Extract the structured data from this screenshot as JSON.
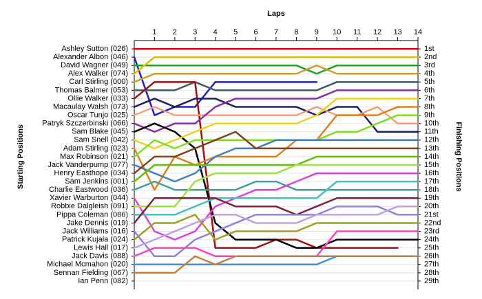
{
  "chart_data": {
    "type": "line",
    "title": "Laps",
    "y_label": "Starting Positions",
    "y2_label": "Finishing Positions",
    "x": [
      0,
      1,
      2,
      3,
      4,
      5,
      6,
      7,
      8,
      9,
      10,
      11,
      12,
      13,
      14
    ],
    "xlim": [
      0,
      14
    ],
    "xticks": [
      1,
      2,
      3,
      4,
      5,
      6,
      7,
      8,
      9,
      10,
      11,
      12,
      13,
      14
    ],
    "ylim": [
      30,
      0
    ],
    "yticks": [
      1,
      2,
      3,
      4,
      5,
      6,
      7,
      8,
      9,
      10,
      11,
      12,
      13,
      14,
      15,
      16,
      17,
      18,
      19,
      20,
      21,
      22,
      23,
      24,
      25,
      26,
      27,
      28,
      29
    ],
    "finishing_positions": [
      "1st",
      "2nd",
      "3rd",
      "4th",
      "5th",
      "6th",
      "7th",
      "8th",
      "9th",
      "10th",
      "11th",
      "12th",
      "13th",
      "14th",
      "15th",
      "16th",
      "17th",
      "18th",
      "19th",
      "20th",
      "21st",
      "22nd",
      "23rd",
      "24th",
      "25th",
      "26th",
      "27th",
      "28th",
      "29th"
    ],
    "grid": true,
    "series": [
      {
        "name": "Ashley Sutton (026)",
        "color": "#e00000",
        "values": [
          1,
          1,
          1,
          1,
          1,
          1,
          1,
          1,
          1,
          1,
          1,
          1,
          1,
          1,
          1
        ]
      },
      {
        "name": "Alexander Albon (046)",
        "color": "#2020c0",
        "values": [
          2,
          9,
          8,
          8,
          5,
          5,
          5,
          5,
          5,
          5,
          null,
          null,
          null,
          null,
          null
        ]
      },
      {
        "name": "David Wagner (049)",
        "color": "#20a020",
        "values": [
          3,
          3,
          3,
          3,
          3,
          3,
          3,
          3,
          3,
          4,
          3,
          3,
          3,
          3,
          3
        ]
      },
      {
        "name": "Alex Walker (074)",
        "color": "#e0c000",
        "values": [
          4,
          2,
          2,
          2,
          2,
          2,
          2,
          2,
          2,
          2,
          2,
          2,
          2,
          2,
          2
        ]
      },
      {
        "name": "Carl Stirling (000)",
        "color": "#c8a030",
        "values": [
          5,
          4,
          4,
          4,
          4,
          4,
          4,
          4,
          4,
          3,
          4,
          4,
          4,
          4,
          4
        ]
      },
      {
        "name": "Thomas Balmer (053)",
        "color": "#405a60",
        "values": [
          6,
          6,
          6,
          5,
          6,
          6,
          6,
          6,
          6,
          6,
          5,
          5,
          5,
          5,
          5
        ]
      },
      {
        "name": "Ollie Walker (033)",
        "color": "#a01010",
        "values": [
          7,
          5,
          5,
          5,
          25,
          25,
          25,
          24,
          24,
          25,
          25,
          25,
          25,
          25,
          null
        ]
      },
      {
        "name": "Macaulay Walsh (073)",
        "color": "#202060",
        "values": [
          8,
          7,
          8,
          7,
          7,
          8,
          8,
          8,
          8,
          9,
          8,
          8,
          11,
          11,
          11
        ]
      },
      {
        "name": "Oscar Tunjo (025)",
        "color": "#f0a080",
        "values": [
          9,
          8,
          9,
          9,
          9,
          9,
          9,
          9,
          9,
          8,
          9,
          9,
          8,
          10,
          10
        ]
      },
      {
        "name": "Patryk Szczerbinski (066)",
        "color": "#8030a0",
        "values": [
          10,
          11,
          10,
          10,
          8,
          7,
          7,
          7,
          7,
          7,
          6,
          6,
          6,
          6,
          6
        ]
      },
      {
        "name": "Sam Blake (045)",
        "color": "#000000",
        "values": [
          11,
          10,
          11,
          13,
          22,
          24,
          24,
          24,
          25,
          25,
          24,
          24,
          24,
          24,
          24
        ]
      },
      {
        "name": "Sam Snell (042)",
        "color": "#f0d020",
        "values": [
          12,
          13,
          12,
          11,
          10,
          10,
          10,
          10,
          10,
          9,
          7,
          7,
          7,
          7,
          7
        ]
      },
      {
        "name": "Adam Stirling (023)",
        "color": "#e08020",
        "values": [
          13,
          18,
          14,
          15,
          14,
          14,
          14,
          14,
          12,
          12,
          9,
          9,
          9,
          8,
          8
        ]
      },
      {
        "name": "Max Robinson (021)",
        "color": "#80e020",
        "values": [
          14,
          12,
          13,
          12,
          12,
          12,
          12,
          12,
          12,
          12,
          11,
          11,
          10,
          9,
          9
        ]
      },
      {
        "name": "Jack Vanderpump (077)",
        "color": "#4080c0",
        "values": [
          15,
          16,
          17,
          16,
          14,
          13,
          13,
          12,
          12,
          12,
          12,
          12,
          12,
          12,
          12
        ]
      },
      {
        "name": "Henry Easthope (034)",
        "color": "#804020",
        "values": [
          16,
          14,
          14,
          13,
          12,
          11,
          13,
          13,
          13,
          13,
          13,
          13,
          13,
          13,
          13
        ]
      },
      {
        "name": "Sam Jenkins (001)",
        "color": "#60c000",
        "values": [
          17,
          15,
          15,
          15,
          15,
          15,
          15,
          15,
          15,
          14,
          14,
          14,
          14,
          14,
          14
        ]
      },
      {
        "name": "Charlie Eastwood (036)",
        "color": "#40a0a0",
        "values": [
          18,
          17,
          18,
          18,
          18,
          18,
          17,
          17,
          18,
          18,
          18,
          18,
          18,
          18,
          18
        ]
      },
      {
        "name": "Xavier Warburton (044)",
        "color": "#e040e0",
        "values": [
          19,
          23,
          24,
          23,
          20,
          19,
          18,
          18,
          17,
          16,
          16,
          16,
          16,
          16,
          16
        ]
      },
      {
        "name": "Robbie Dalgleish (091)",
        "color": "#a0e040",
        "values": [
          20,
          20,
          20,
          17,
          16,
          16,
          16,
          16,
          15,
          15,
          15,
          15,
          15,
          15,
          15
        ]
      },
      {
        "name": "Pippa Coleman (086)",
        "color": "#40c0c0",
        "values": [
          21,
          21,
          21,
          20,
          19,
          19,
          19,
          19,
          19,
          19,
          17,
          17,
          17,
          17,
          17
        ]
      },
      {
        "name": "Jake Dennis (019)",
        "color": "#802040",
        "values": [
          22,
          19,
          19,
          19,
          19,
          20,
          20,
          20,
          21,
          20,
          19,
          19,
          19,
          19,
          19
        ]
      },
      {
        "name": "Jack Williams (016)",
        "color": "#9080e0",
        "values": [
          23,
          26,
          26,
          24,
          23,
          22,
          21,
          21,
          21,
          21,
          20,
          20,
          20,
          21,
          21
        ]
      },
      {
        "name": "Patrick Kujala (024)",
        "color": "#a0a020",
        "values": [
          24,
          22,
          22,
          21,
          24,
          23,
          23,
          23,
          23,
          22,
          22,
          22,
          22,
          22,
          22
        ]
      },
      {
        "name": "Lewis Hall (017)",
        "color": "#c0a0e0",
        "values": [
          25,
          24,
          23,
          22,
          21,
          21,
          22,
          22,
          22,
          21,
          21,
          21,
          21,
          20,
          20
        ]
      },
      {
        "name": "Jack Davis (088)",
        "color": "#ff40c0",
        "values": [
          26,
          25,
          25,
          25,
          26,
          26,
          26,
          26,
          26,
          26,
          23,
          23,
          23,
          23,
          23
        ]
      },
      {
        "name": "Michael Mcmahon (020)",
        "color": "#4090e0",
        "values": [
          27,
          27,
          27,
          27,
          27,
          27,
          27,
          27,
          27,
          27,
          26,
          26,
          null,
          null,
          null
        ]
      },
      {
        "name": "Sennan Fielding (067)",
        "color": "#c08040",
        "values": [
          28,
          28,
          28,
          26,
          27,
          26,
          26,
          26,
          26,
          26,
          26,
          26,
          26,
          26,
          26
        ]
      },
      {
        "name": "Ian Penn (082)",
        "color": "#808080",
        "values": [
          29,
          null,
          null,
          null,
          null,
          null,
          null,
          null,
          null,
          null,
          null,
          null,
          null,
          null,
          null
        ]
      }
    ]
  }
}
